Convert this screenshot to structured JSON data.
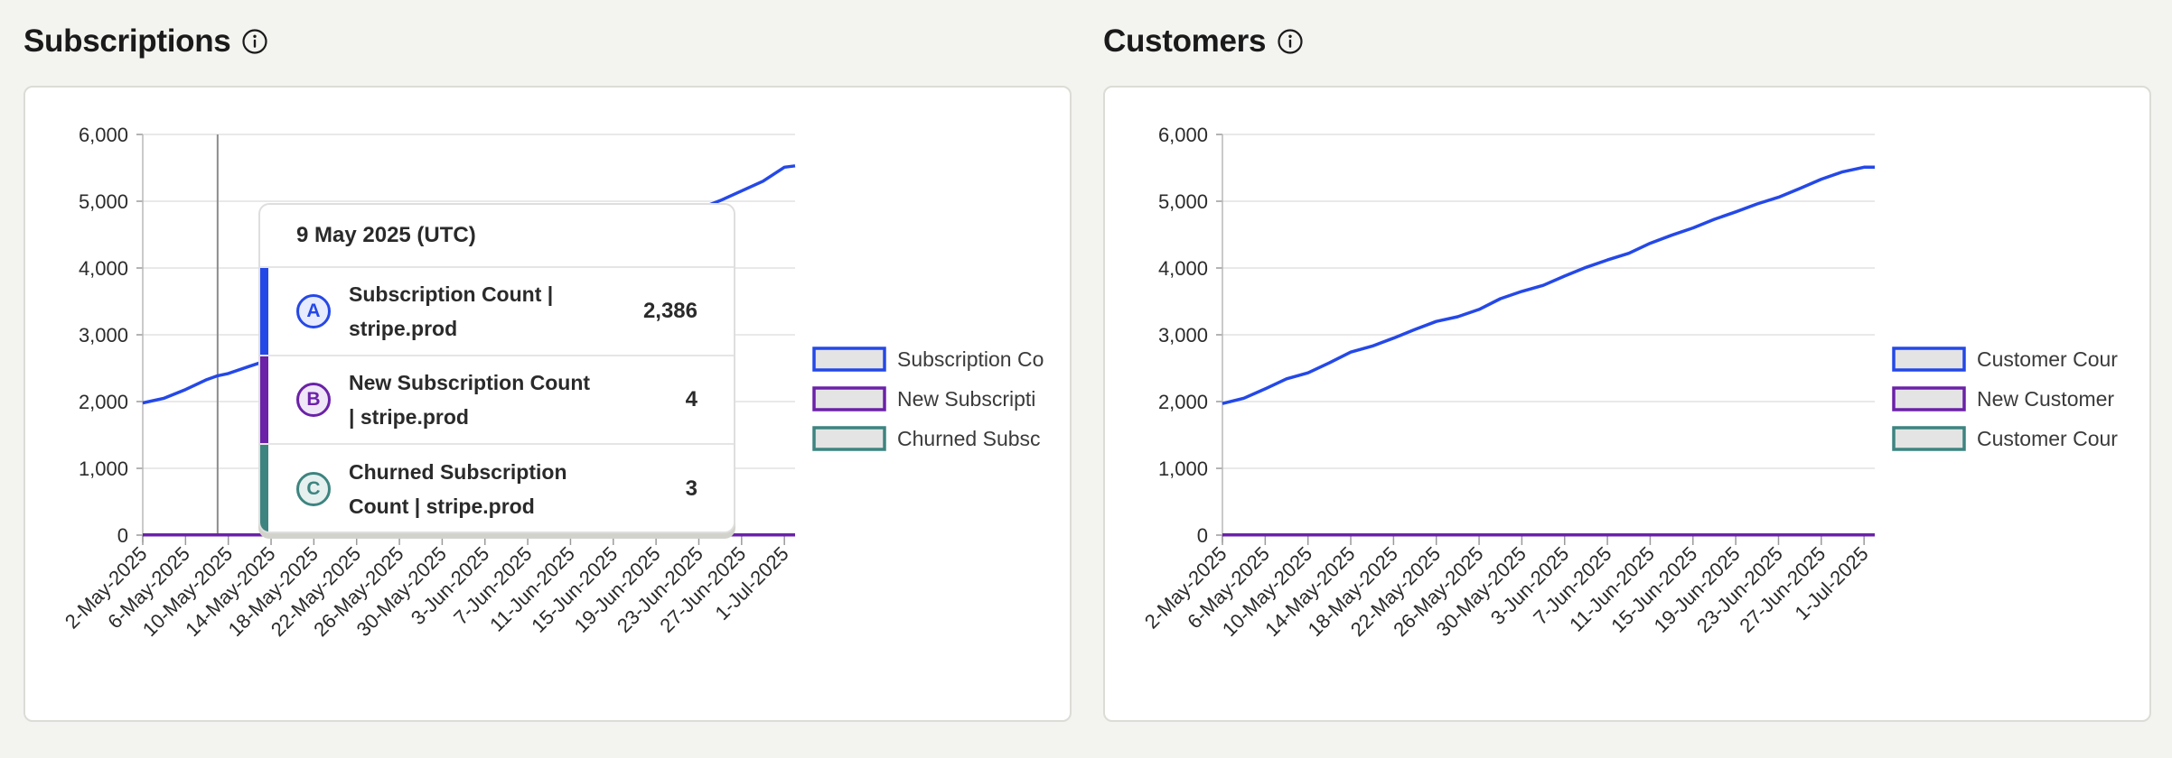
{
  "colors": {
    "series_a": "#2448e8",
    "series_b": "#6b21a8",
    "series_c": "#3d8480",
    "legend_fill": "#e4e4e4",
    "grid": "#e2e2e2"
  },
  "icons": {
    "info": "info-circle-icon"
  },
  "subscriptions": {
    "title": "Subscriptions",
    "tooltip": {
      "date": "9 May 2025 (UTC)",
      "rows": [
        {
          "badge": "A",
          "name": "Subscription Count | stripe.prod",
          "value": "2,386"
        },
        {
          "badge": "B",
          "name": "New Subscription Count | stripe.prod",
          "value": "4"
        },
        {
          "badge": "C",
          "name": "Churned Subscription Count | stripe.prod",
          "value": "3"
        }
      ]
    }
  },
  "customers": {
    "title": "Customers"
  },
  "chart_data": [
    {
      "type": "line",
      "ylim": [
        0,
        6000
      ],
      "yticks": [
        "0",
        "1,000",
        "2,000",
        "3,000",
        "4,000",
        "5,000",
        "6,000"
      ],
      "x_tick_labels": [
        "2-May-2025",
        "6-May-2025",
        "10-May-2025",
        "14-May-2025",
        "18-May-2025",
        "22-May-2025",
        "26-May-2025",
        "30-May-2025",
        "3-Jun-2025",
        "7-Jun-2025",
        "11-Jun-2025",
        "15-Jun-2025",
        "19-Jun-2025",
        "23-Jun-2025",
        "27-Jun-2025",
        "1-Jul-2025"
      ],
      "x_start": "2025-05-02",
      "x_end": "2025-07-02",
      "legend_placement": "right",
      "legend": [
        "Subscription Co",
        "New Subscripti",
        "Churned Subsc"
      ],
      "hover_date": "2025-05-09",
      "series": [
        {
          "x": [
            "2025-05-02",
            "2025-05-04",
            "2025-05-06",
            "2025-05-08",
            "2025-05-09",
            "2025-05-10",
            "2025-05-12",
            "2025-05-16",
            "2025-05-20",
            "2025-05-24",
            "2025-05-28",
            "2025-06-01",
            "2025-06-05",
            "2025-06-09",
            "2025-06-13",
            "2025-06-17",
            "2025-06-21",
            "2025-06-25",
            "2025-06-29",
            "2025-07-01",
            "2025-07-02"
          ],
          "values": [
            1980,
            2050,
            2180,
            2330,
            2386,
            2420,
            2530,
            2740,
            2960,
            3190,
            3420,
            3640,
            3870,
            4080,
            4300,
            4530,
            4760,
            5010,
            5300,
            5510,
            5530
          ]
        },
        {
          "x": [
            "2025-05-02",
            "2025-07-02"
          ],
          "values": [
            4,
            4
          ]
        },
        {
          "x": [
            "2025-05-02",
            "2025-07-02"
          ],
          "values": [
            3,
            3
          ]
        }
      ]
    },
    {
      "type": "line",
      "ylim": [
        0,
        6000
      ],
      "yticks": [
        "0",
        "1,000",
        "2,000",
        "3,000",
        "4,000",
        "5,000",
        "6,000"
      ],
      "x_tick_labels": [
        "2-May-2025",
        "6-May-2025",
        "10-May-2025",
        "14-May-2025",
        "18-May-2025",
        "22-May-2025",
        "26-May-2025",
        "30-May-2025",
        "3-Jun-2025",
        "7-Jun-2025",
        "11-Jun-2025",
        "15-Jun-2025",
        "19-Jun-2025",
        "23-Jun-2025",
        "27-Jun-2025",
        "1-Jul-2025"
      ],
      "x_start": "2025-05-02",
      "x_end": "2025-07-02",
      "legend_placement": "right",
      "legend": [
        "Customer Cour",
        "New Customer",
        "Customer Cour"
      ],
      "series": [
        {
          "x": [
            "2025-05-02",
            "2025-05-04",
            "2025-05-06",
            "2025-05-08",
            "2025-05-10",
            "2025-05-12",
            "2025-05-14",
            "2025-05-16",
            "2025-05-18",
            "2025-05-20",
            "2025-05-22",
            "2025-05-24",
            "2025-05-26",
            "2025-05-28",
            "2025-05-30",
            "2025-06-01",
            "2025-06-03",
            "2025-06-05",
            "2025-06-07",
            "2025-06-09",
            "2025-06-11",
            "2025-06-13",
            "2025-06-15",
            "2025-06-17",
            "2025-06-19",
            "2025-06-21",
            "2025-06-23",
            "2025-06-25",
            "2025-06-27",
            "2025-06-29",
            "2025-07-01",
            "2025-07-02"
          ],
          "values": [
            1970,
            2050,
            2190,
            2340,
            2430,
            2580,
            2740,
            2830,
            2950,
            3080,
            3200,
            3270,
            3380,
            3540,
            3650,
            3740,
            3880,
            4010,
            4120,
            4220,
            4370,
            4490,
            4600,
            4730,
            4840,
            4960,
            5060,
            5190,
            5330,
            5440,
            5510,
            5510
          ]
        },
        {
          "x": [
            "2025-05-02",
            "2025-07-02"
          ],
          "values": [
            4,
            4
          ]
        },
        {
          "x": [
            "2025-05-02",
            "2025-07-02"
          ],
          "values": [
            3,
            3
          ]
        }
      ]
    }
  ]
}
